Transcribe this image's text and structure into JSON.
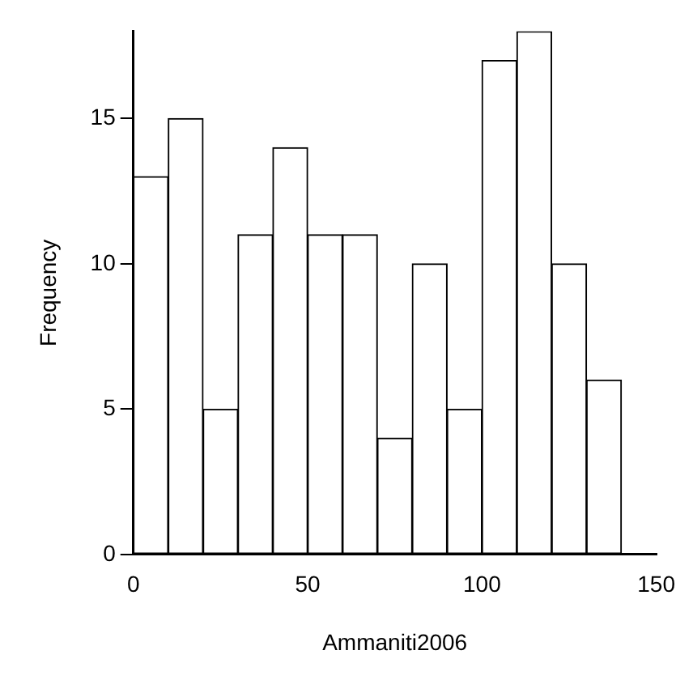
{
  "chart_data": {
    "type": "histogram",
    "xlabel": "Ammaniti2006",
    "ylabel": "Frequency",
    "bins": [
      0,
      10,
      20,
      30,
      40,
      50,
      60,
      70,
      80,
      90,
      100,
      110,
      120,
      130,
      140
    ],
    "values": [
      13,
      15,
      5,
      11,
      14,
      11,
      11,
      4,
      10,
      5,
      17,
      18,
      10,
      6
    ],
    "color": "#ffffff",
    "xlim": [
      0,
      150
    ],
    "xticks": [
      0,
      50,
      100,
      150
    ],
    "ylim": [
      0,
      18
    ],
    "yticks": [
      0,
      5,
      10,
      15
    ]
  }
}
